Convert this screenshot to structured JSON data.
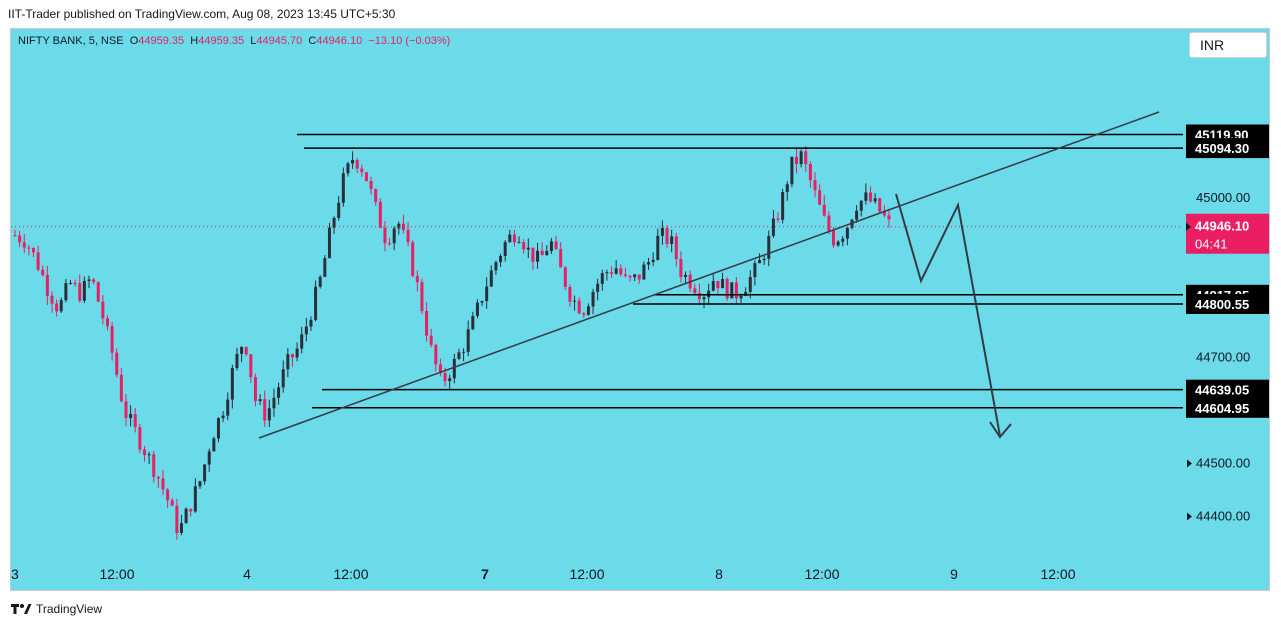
{
  "header": {
    "publisher_text": "IIT-Trader published on TradingView.com, Aug 08, 2023 13:45 UTC+5:30"
  },
  "legend": {
    "symbol": "NIFTY BANK, 5, NSE",
    "o_label": "O",
    "o_value": "44959.35",
    "h_label": "H",
    "h_value": "44959.35",
    "l_label": "L",
    "l_value": "44945.70",
    "c_label": "C",
    "c_value": "44946.10",
    "change": "−13.10 (−0.03%)"
  },
  "currency_button": "INR",
  "footer": {
    "brand": "TradingView"
  },
  "colors": {
    "background": "#6bdbe9",
    "up": "#2a2e39",
    "down": "#e91e63",
    "label_bg": "#000000",
    "label_text": "#ffffff",
    "price_marker": "#e91e63"
  },
  "chart_data": {
    "type": "candlestick",
    "symbol": "NIFTY BANK",
    "interval": "5",
    "exchange": "NSE",
    "y_range": [
      44320,
      45200
    ],
    "y_ticks": [
      {
        "value": 45000,
        "label": "45000.00"
      },
      {
        "value": 44700,
        "label": "44700.00"
      },
      {
        "value": 44500,
        "label": "44500.00"
      },
      {
        "value": 44400,
        "label": "44400.00"
      }
    ],
    "x_ticks": [
      "3",
      "12:00",
      "4",
      "12:00",
      "7",
      "12:00",
      "8",
      "12:00",
      "9",
      "12:00"
    ],
    "current_price": {
      "value": 44946.1,
      "label": "44946.10",
      "countdown": "04:41"
    },
    "levels": [
      {
        "value": 45119.9,
        "label": "45119.90"
      },
      {
        "value": 45094.3,
        "label": "45094.30"
      },
      {
        "value": 44817.85,
        "label": "44817.85"
      },
      {
        "value": 44800.55,
        "label": "44800.55"
      },
      {
        "value": 44639.05,
        "label": "44639.05"
      },
      {
        "value": 44604.95,
        "label": "44604.95"
      }
    ],
    "close_path": [
      44930,
      44920,
      44880,
      44830,
      44790,
      44840,
      44820,
      44850,
      44780,
      44700,
      44600,
      44560,
      44520,
      44480,
      44430,
      44370,
      44420,
      44470,
      44550,
      44600,
      44680,
      44740,
      44620,
      44590,
      44640,
      44690,
      44720,
      44780,
      44850,
      44950,
      45030,
      45080,
      45050,
      44980,
      44920,
      44960,
      44900,
      44820,
      44720,
      44650,
      44680,
      44720,
      44770,
      44830,
      44880,
      44920,
      44940,
      44900,
      44880,
      44920,
      44860,
      44810,
      44790,
      44830,
      44860,
      44870,
      44840,
      44850,
      44880,
      44930,
      44920,
      44860,
      44840,
      44820,
      44850,
      44830,
      44820,
      44840,
      44870,
      44920,
      44980,
      45060,
      45080,
      45020,
      44960,
      44920,
      44940,
      44990,
      45000,
      44980,
      44950
    ]
  }
}
